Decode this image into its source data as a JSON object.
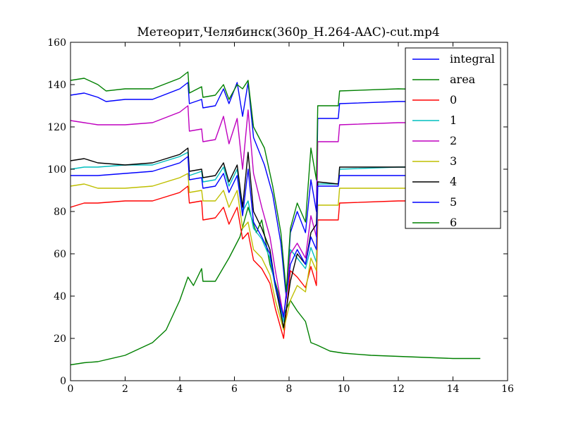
{
  "chart_data": {
    "type": "line",
    "title": "Метеорит,Челябинск(360p_H.264-AAC)-cut.mp4",
    "xlabel": "",
    "ylabel": "",
    "xlim": [
      0,
      16
    ],
    "ylim": [
      0,
      160
    ],
    "xticks": [
      0,
      2,
      4,
      6,
      8,
      10,
      12,
      14,
      16
    ],
    "yticks": [
      0,
      20,
      40,
      60,
      80,
      100,
      120,
      140,
      160
    ],
    "grid": false,
    "legend_position": "top-right",
    "series": [
      {
        "name": "integral",
        "color": "#0000ff",
        "points": [
          [
            0,
            135
          ],
          [
            0.5,
            136
          ],
          [
            1,
            134
          ],
          [
            1.3,
            132
          ],
          [
            2,
            133
          ],
          [
            3,
            133
          ],
          [
            4,
            138
          ],
          [
            4.3,
            141
          ],
          [
            4.35,
            131
          ],
          [
            4.8,
            133
          ],
          [
            4.85,
            129
          ],
          [
            5.3,
            130
          ],
          [
            5.6,
            138
          ],
          [
            5.8,
            131
          ],
          [
            6.1,
            141
          ],
          [
            6.3,
            125
          ],
          [
            6.5,
            141
          ],
          [
            6.7,
            115
          ],
          [
            7.1,
            102
          ],
          [
            7.4,
            88
          ],
          [
            7.7,
            65
          ],
          [
            7.9,
            39
          ],
          [
            8.05,
            70
          ],
          [
            8.3,
            80
          ],
          [
            8.6,
            70
          ],
          [
            8.8,
            95
          ],
          [
            9.0,
            80
          ],
          [
            9.05,
            124
          ],
          [
            9.5,
            124
          ],
          [
            9.8,
            124
          ],
          [
            9.85,
            131
          ],
          [
            12,
            132
          ],
          [
            15,
            132
          ]
        ]
      },
      {
        "name": "area",
        "color": "#008000",
        "points": [
          [
            0,
            7.5
          ],
          [
            0.5,
            8.5
          ],
          [
            1,
            9
          ],
          [
            2,
            12
          ],
          [
            3,
            18
          ],
          [
            3.5,
            24
          ],
          [
            4,
            38
          ],
          [
            4.3,
            49
          ],
          [
            4.5,
            45
          ],
          [
            4.8,
            53
          ],
          [
            4.85,
            47
          ],
          [
            5.3,
            47
          ],
          [
            5.8,
            58
          ],
          [
            6.2,
            68
          ],
          [
            6.5,
            82
          ],
          [
            6.8,
            70
          ],
          [
            7.0,
            76
          ],
          [
            7.3,
            55
          ],
          [
            7.6,
            42
          ],
          [
            7.8,
            31
          ],
          [
            8.05,
            38
          ],
          [
            8.3,
            33
          ],
          [
            8.6,
            28
          ],
          [
            8.8,
            18
          ],
          [
            9.0,
            17
          ],
          [
            9.5,
            14
          ],
          [
            10,
            13
          ],
          [
            11,
            12
          ],
          [
            12,
            11.5
          ],
          [
            13,
            11
          ],
          [
            14,
            10.5
          ],
          [
            15,
            10.5
          ]
        ]
      },
      {
        "name": "0",
        "color": "#ff0000",
        "points": [
          [
            0,
            82
          ],
          [
            0.5,
            84
          ],
          [
            1,
            84
          ],
          [
            2,
            85
          ],
          [
            3,
            85
          ],
          [
            4,
            89
          ],
          [
            4.3,
            92
          ],
          [
            4.35,
            84
          ],
          [
            4.8,
            85
          ],
          [
            4.85,
            76
          ],
          [
            5.3,
            77
          ],
          [
            5.6,
            82
          ],
          [
            5.8,
            74
          ],
          [
            6.1,
            82
          ],
          [
            6.3,
            67
          ],
          [
            6.5,
            70
          ],
          [
            6.7,
            57
          ],
          [
            7.0,
            53
          ],
          [
            7.3,
            46
          ],
          [
            7.5,
            34
          ],
          [
            7.8,
            20
          ],
          [
            8.05,
            52
          ],
          [
            8.3,
            49
          ],
          [
            8.6,
            44
          ],
          [
            8.8,
            54
          ],
          [
            9.0,
            45
          ],
          [
            9.05,
            76
          ],
          [
            9.8,
            76
          ],
          [
            9.85,
            84
          ],
          [
            12,
            85
          ],
          [
            15,
            85
          ]
        ]
      },
      {
        "name": "1",
        "color": "#00bfbf",
        "points": [
          [
            0,
            100
          ],
          [
            0.5,
            101
          ],
          [
            1,
            101
          ],
          [
            2,
            102
          ],
          [
            3,
            102
          ],
          [
            4,
            106
          ],
          [
            4.3,
            108
          ],
          [
            4.35,
            97
          ],
          [
            4.8,
            99
          ],
          [
            4.85,
            94
          ],
          [
            5.3,
            95
          ],
          [
            5.6,
            101
          ],
          [
            5.8,
            92
          ],
          [
            6.1,
            100
          ],
          [
            6.3,
            80
          ],
          [
            6.5,
            85
          ],
          [
            6.7,
            72
          ],
          [
            7.0,
            67
          ],
          [
            7.3,
            58
          ],
          [
            7.5,
            44
          ],
          [
            7.8,
            28
          ],
          [
            8.05,
            62
          ],
          [
            8.3,
            58
          ],
          [
            8.6,
            53
          ],
          [
            8.8,
            63
          ],
          [
            9.0,
            56
          ],
          [
            9.05,
            93
          ],
          [
            9.8,
            93
          ],
          [
            9.85,
            100
          ],
          [
            12,
            101
          ],
          [
            15,
            101
          ]
        ]
      },
      {
        "name": "2",
        "color": "#bf00bf",
        "points": [
          [
            0,
            123
          ],
          [
            0.5,
            122
          ],
          [
            1,
            121
          ],
          [
            2,
            121
          ],
          [
            3,
            122
          ],
          [
            4,
            127
          ],
          [
            4.3,
            130
          ],
          [
            4.35,
            118
          ],
          [
            4.8,
            119
          ],
          [
            4.85,
            113
          ],
          [
            5.3,
            114
          ],
          [
            5.6,
            125
          ],
          [
            5.8,
            112
          ],
          [
            6.1,
            124
          ],
          [
            6.3,
            100
          ],
          [
            6.5,
            128
          ],
          [
            6.7,
            98
          ],
          [
            7.0,
            82
          ],
          [
            7.3,
            68
          ],
          [
            7.5,
            52
          ],
          [
            7.8,
            30
          ],
          [
            8.05,
            60
          ],
          [
            8.3,
            65
          ],
          [
            8.6,
            58
          ],
          [
            8.8,
            78
          ],
          [
            9.0,
            68
          ],
          [
            9.05,
            113
          ],
          [
            9.8,
            113
          ],
          [
            9.85,
            121
          ],
          [
            12,
            122
          ],
          [
            15,
            122
          ]
        ]
      },
      {
        "name": "3",
        "color": "#bfbf00",
        "points": [
          [
            0,
            92
          ],
          [
            0.5,
            93
          ],
          [
            1,
            91
          ],
          [
            2,
            91
          ],
          [
            3,
            92
          ],
          [
            4,
            96
          ],
          [
            4.3,
            98
          ],
          [
            4.35,
            89
          ],
          [
            4.8,
            90
          ],
          [
            4.85,
            85
          ],
          [
            5.3,
            85
          ],
          [
            5.6,
            90
          ],
          [
            5.8,
            82
          ],
          [
            6.1,
            90
          ],
          [
            6.3,
            72
          ],
          [
            6.5,
            75
          ],
          [
            6.7,
            62
          ],
          [
            7.0,
            58
          ],
          [
            7.3,
            50
          ],
          [
            7.5,
            38
          ],
          [
            7.8,
            24
          ],
          [
            8.05,
            38
          ],
          [
            8.3,
            45
          ],
          [
            8.6,
            42
          ],
          [
            8.8,
            58
          ],
          [
            9.0,
            52
          ],
          [
            9.05,
            83
          ],
          [
            9.8,
            83
          ],
          [
            9.85,
            91
          ],
          [
            12,
            91
          ],
          [
            15,
            91
          ]
        ]
      },
      {
        "name": "4",
        "color": "#000000",
        "points": [
          [
            0,
            104
          ],
          [
            0.5,
            105
          ],
          [
            1,
            103
          ],
          [
            2,
            102
          ],
          [
            3,
            103
          ],
          [
            4,
            107
          ],
          [
            4.3,
            110
          ],
          [
            4.35,
            99
          ],
          [
            4.8,
            100
          ],
          [
            4.85,
            96
          ],
          [
            5.3,
            97
          ],
          [
            5.6,
            103
          ],
          [
            5.8,
            94
          ],
          [
            6.1,
            102
          ],
          [
            6.3,
            82
          ],
          [
            6.5,
            108
          ],
          [
            6.7,
            80
          ],
          [
            7.0,
            72
          ],
          [
            7.3,
            62
          ],
          [
            7.5,
            45
          ],
          [
            7.8,
            25
          ],
          [
            8.05,
            47
          ],
          [
            8.3,
            60
          ],
          [
            8.6,
            55
          ],
          [
            8.8,
            70
          ],
          [
            9.0,
            74
          ],
          [
            9.05,
            94
          ],
          [
            9.8,
            93
          ],
          [
            9.85,
            101
          ],
          [
            12,
            101
          ],
          [
            15,
            101
          ]
        ]
      },
      {
        "name": "5",
        "color": "#0000ff",
        "points": [
          [
            0,
            97
          ],
          [
            0.5,
            97
          ],
          [
            1,
            97
          ],
          [
            2,
            98
          ],
          [
            3,
            99
          ],
          [
            4,
            103
          ],
          [
            4.3,
            106
          ],
          [
            4.35,
            95
          ],
          [
            4.8,
            96
          ],
          [
            4.85,
            91
          ],
          [
            5.3,
            92
          ],
          [
            5.6,
            98
          ],
          [
            5.8,
            89
          ],
          [
            6.1,
            97
          ],
          [
            6.3,
            78
          ],
          [
            6.5,
            100
          ],
          [
            6.7,
            75
          ],
          [
            7.0,
            68
          ],
          [
            7.3,
            60
          ],
          [
            7.5,
            45
          ],
          [
            7.8,
            30
          ],
          [
            8.05,
            55
          ],
          [
            8.3,
            62
          ],
          [
            8.6,
            55
          ],
          [
            8.8,
            68
          ],
          [
            9.0,
            62
          ],
          [
            9.05,
            92
          ],
          [
            9.8,
            92
          ],
          [
            9.85,
            97
          ],
          [
            12,
            97
          ],
          [
            15,
            97
          ]
        ]
      },
      {
        "name": "6",
        "color": "#008000",
        "points": [
          [
            0,
            142
          ],
          [
            0.5,
            143
          ],
          [
            1,
            140
          ],
          [
            1.3,
            137
          ],
          [
            2,
            138
          ],
          [
            3,
            138
          ],
          [
            4,
            143
          ],
          [
            4.3,
            146
          ],
          [
            4.35,
            136
          ],
          [
            4.8,
            139
          ],
          [
            4.85,
            134
          ],
          [
            5.3,
            135
          ],
          [
            5.6,
            140
          ],
          [
            5.8,
            133
          ],
          [
            6.1,
            140
          ],
          [
            6.3,
            138
          ],
          [
            6.5,
            142
          ],
          [
            6.7,
            120
          ],
          [
            7.1,
            110
          ],
          [
            7.4,
            92
          ],
          [
            7.7,
            70
          ],
          [
            7.9,
            42
          ],
          [
            8.05,
            72
          ],
          [
            8.3,
            84
          ],
          [
            8.6,
            75
          ],
          [
            8.8,
            110
          ],
          [
            9.0,
            95
          ],
          [
            9.05,
            130
          ],
          [
            9.5,
            130
          ],
          [
            9.8,
            130
          ],
          [
            9.85,
            137
          ],
          [
            12,
            138
          ],
          [
            15,
            137
          ]
        ]
      }
    ]
  }
}
